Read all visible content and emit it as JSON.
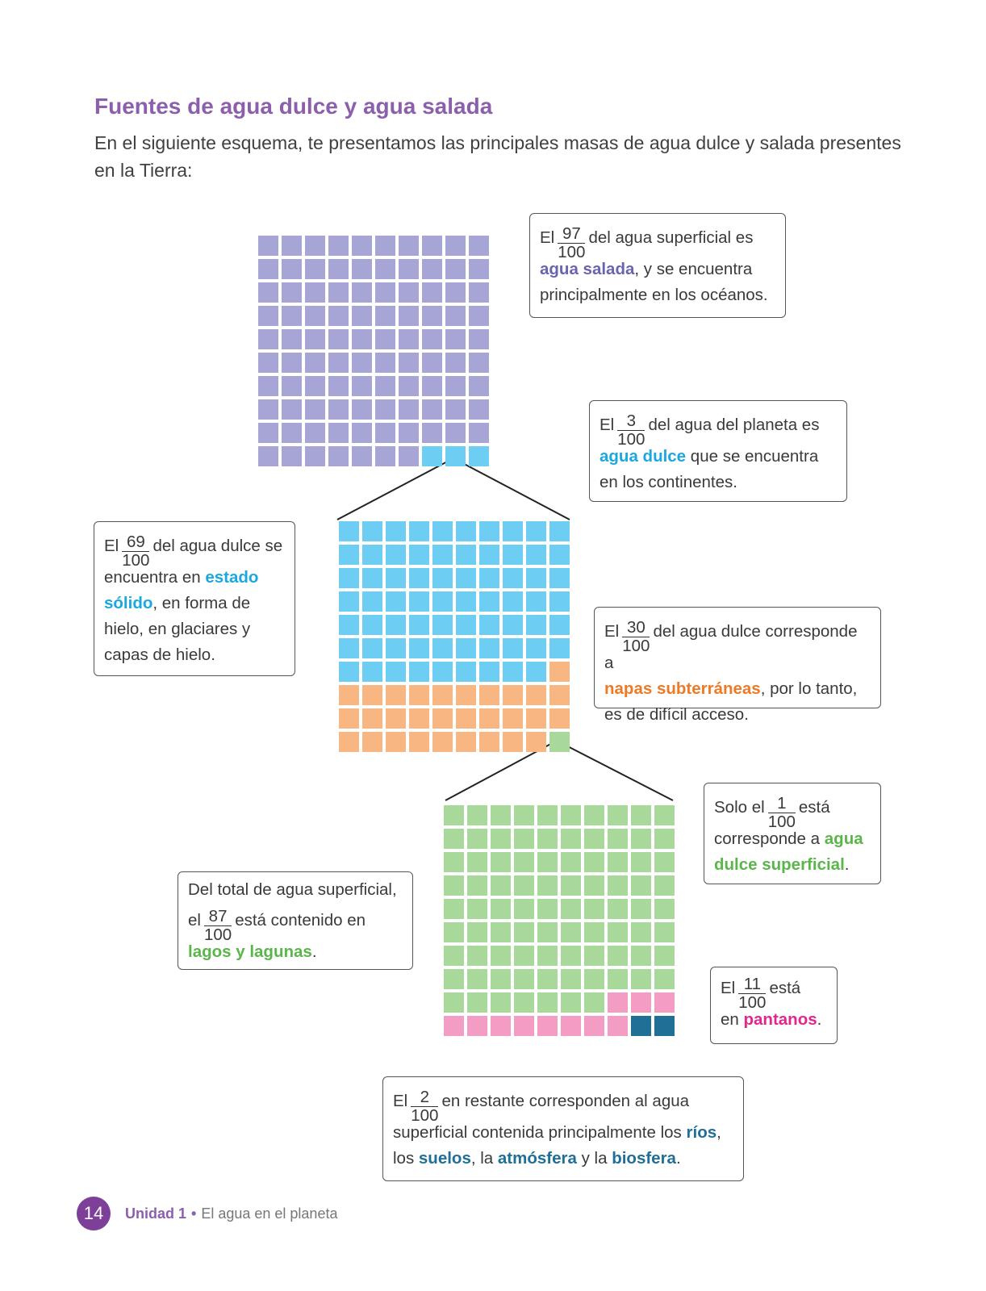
{
  "header": {
    "title": "Fuentes de agua dulce y agua salada",
    "intro": "En el siguiente esquema, te presentamos las principales masas de agua dulce y salada presentes en la Tierra:"
  },
  "colors": {
    "salada": "#a7a4d6",
    "dulce": "#6ecdf3",
    "subterranea": "#f8b682",
    "superficial": "#a8d89a",
    "pantanos": "#f49dc4",
    "restante": "#1f6f96",
    "title": "#8b5fae"
  },
  "grids": {
    "planeta": {
      "total": 100,
      "parts": [
        {
          "key": "salada",
          "count": 97
        },
        {
          "key": "dulce",
          "count": 3
        }
      ]
    },
    "agua_dulce": {
      "total": 100,
      "parts": [
        {
          "key": "dulce",
          "count": 69
        },
        {
          "key": "subterranea",
          "count": 30
        },
        {
          "key": "superficial",
          "count": 1
        }
      ]
    },
    "agua_superficial": {
      "total": 100,
      "parts": [
        {
          "key": "superficial",
          "count": 87
        },
        {
          "key": "pantanos",
          "count": 11
        },
        {
          "key": "restante",
          "count": 2
        }
      ]
    }
  },
  "boxes": {
    "salada": {
      "pre": "El",
      "num": "97",
      "den": "100",
      "mid": "del agua superficial es",
      "bold": "agua salada",
      "post": ", y se encuentra principalmente en los océanos."
    },
    "dulce": {
      "pre": "El",
      "num": "3",
      "den": "100",
      "mid": "del agua del planeta es",
      "bold": "agua dulce",
      "post": " que se encuentra en los continentes."
    },
    "solido": {
      "pre": "El",
      "num": "69",
      "den": "100",
      "mid": "del agua dulce se",
      "text1": "encuentra en ",
      "bold": "estado sólido",
      "post": ", en forma de hielo, en glaciares y capas de hielo."
    },
    "subterranea": {
      "pre": "El",
      "num": "30",
      "den": "100",
      "mid": "del agua dulce corresponde a",
      "bold": "napas subterráneas",
      "post": ", por lo tanto, es de difícil acceso."
    },
    "superficial": {
      "pre": "Solo el",
      "num": "1",
      "den": "100",
      "mid": "está",
      "text1": "corresponde a ",
      "bold": "agua dulce superficial",
      "post": "."
    },
    "lagos": {
      "line1": "Del total de agua superficial,",
      "pre": "el",
      "num": "87",
      "den": "100",
      "mid": "está contenido en",
      "bold": "lagos y lagunas",
      "post": "."
    },
    "pantanos": {
      "pre": "El",
      "num": "11",
      "den": "100",
      "mid": "está",
      "text1": "en ",
      "bold": "pantanos",
      "post": "."
    },
    "restante": {
      "pre": "El",
      "num": "2",
      "den": "100",
      "mid": "en restante corresponden al agua",
      "text1": "superficial contenida principalmente los ",
      "bold1": "ríos",
      "text2": ",",
      "text3": "los ",
      "bold2": "suelos",
      "text4": ", la ",
      "bold3": "atmósfera",
      "text5": " y la ",
      "bold4": "biosfera",
      "post": "."
    }
  },
  "footer": {
    "page": "14",
    "unit": "Unidad 1",
    "separator": "•",
    "chapter": "El agua en el planeta"
  }
}
